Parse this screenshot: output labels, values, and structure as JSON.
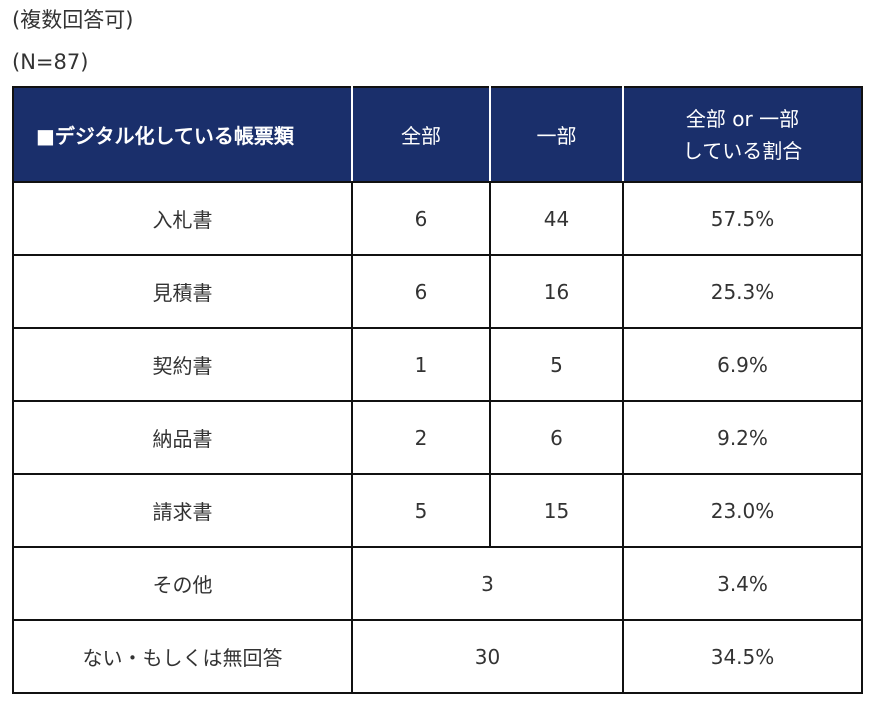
{
  "notes": {
    "multiple_answers": "(複数回答可)",
    "sample_size": "(N=87)"
  },
  "table": {
    "headers": {
      "category": "■デジタル化している帳票類",
      "all": "全部",
      "partial": "一部",
      "ratio_line1": "全部 or 一部",
      "ratio_line2": "している割合"
    },
    "rows": [
      {
        "label": "入札書",
        "all": "6",
        "partial": "44",
        "ratio": "57.5%"
      },
      {
        "label": "見積書",
        "all": "6",
        "partial": "16",
        "ratio": "25.3%"
      },
      {
        "label": "契約書",
        "all": "1",
        "partial": "5",
        "ratio": "6.9%"
      },
      {
        "label": "納品書",
        "all": "2",
        "partial": "6",
        "ratio": "9.2%"
      },
      {
        "label": "請求書",
        "all": "5",
        "partial": "15",
        "ratio": "23.0%"
      }
    ],
    "merged_rows": [
      {
        "label": "その他",
        "count": "3",
        "ratio": "3.4%"
      },
      {
        "label": "ない・もしくは無回答",
        "count": "30",
        "ratio": "34.5%"
      }
    ]
  },
  "colors": {
    "header_background": "#1a2f6b",
    "header_text": "#ffffff",
    "border": "#111111"
  }
}
